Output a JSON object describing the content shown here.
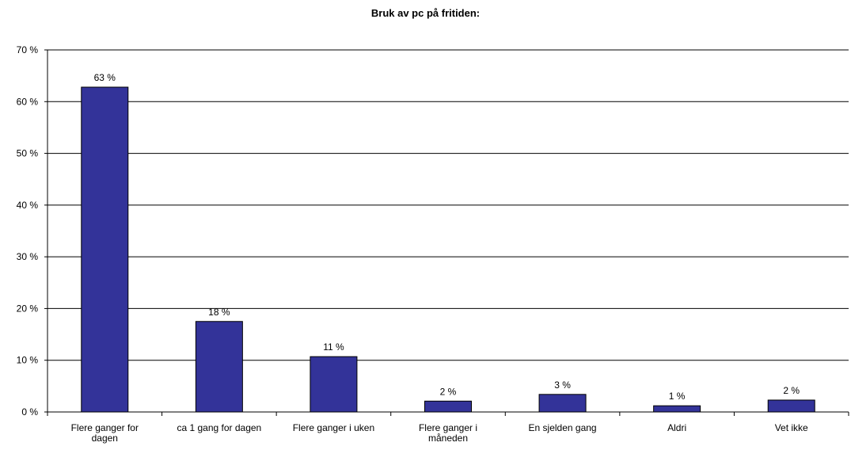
{
  "chart_data": {
    "type": "bar",
    "title": "Bruk av pc på fritiden:",
    "categories": [
      "Flere ganger for dagen",
      "ca 1 gang for dagen",
      "Flere ganger i uken",
      "Flere ganger i måneden",
      "En sjelden gang",
      "Aldri",
      "Vet ikke"
    ],
    "values": [
      62.8,
      17.5,
      10.7,
      2.1,
      3.4,
      1.2,
      2.3
    ],
    "data_labels": [
      "63 %",
      "18 %",
      "11 %",
      "2 %",
      "3 %",
      "1 %",
      "2 %"
    ],
    "ylim": [
      0,
      70
    ],
    "yticks": [
      "0 %",
      "10 %",
      "20 %",
      "30 %",
      "40 %",
      "50 %",
      "60 %",
      "70 %"
    ],
    "xlabel": "",
    "ylabel": "",
    "grid": true,
    "legend": "none",
    "bar_color": "#333399"
  }
}
